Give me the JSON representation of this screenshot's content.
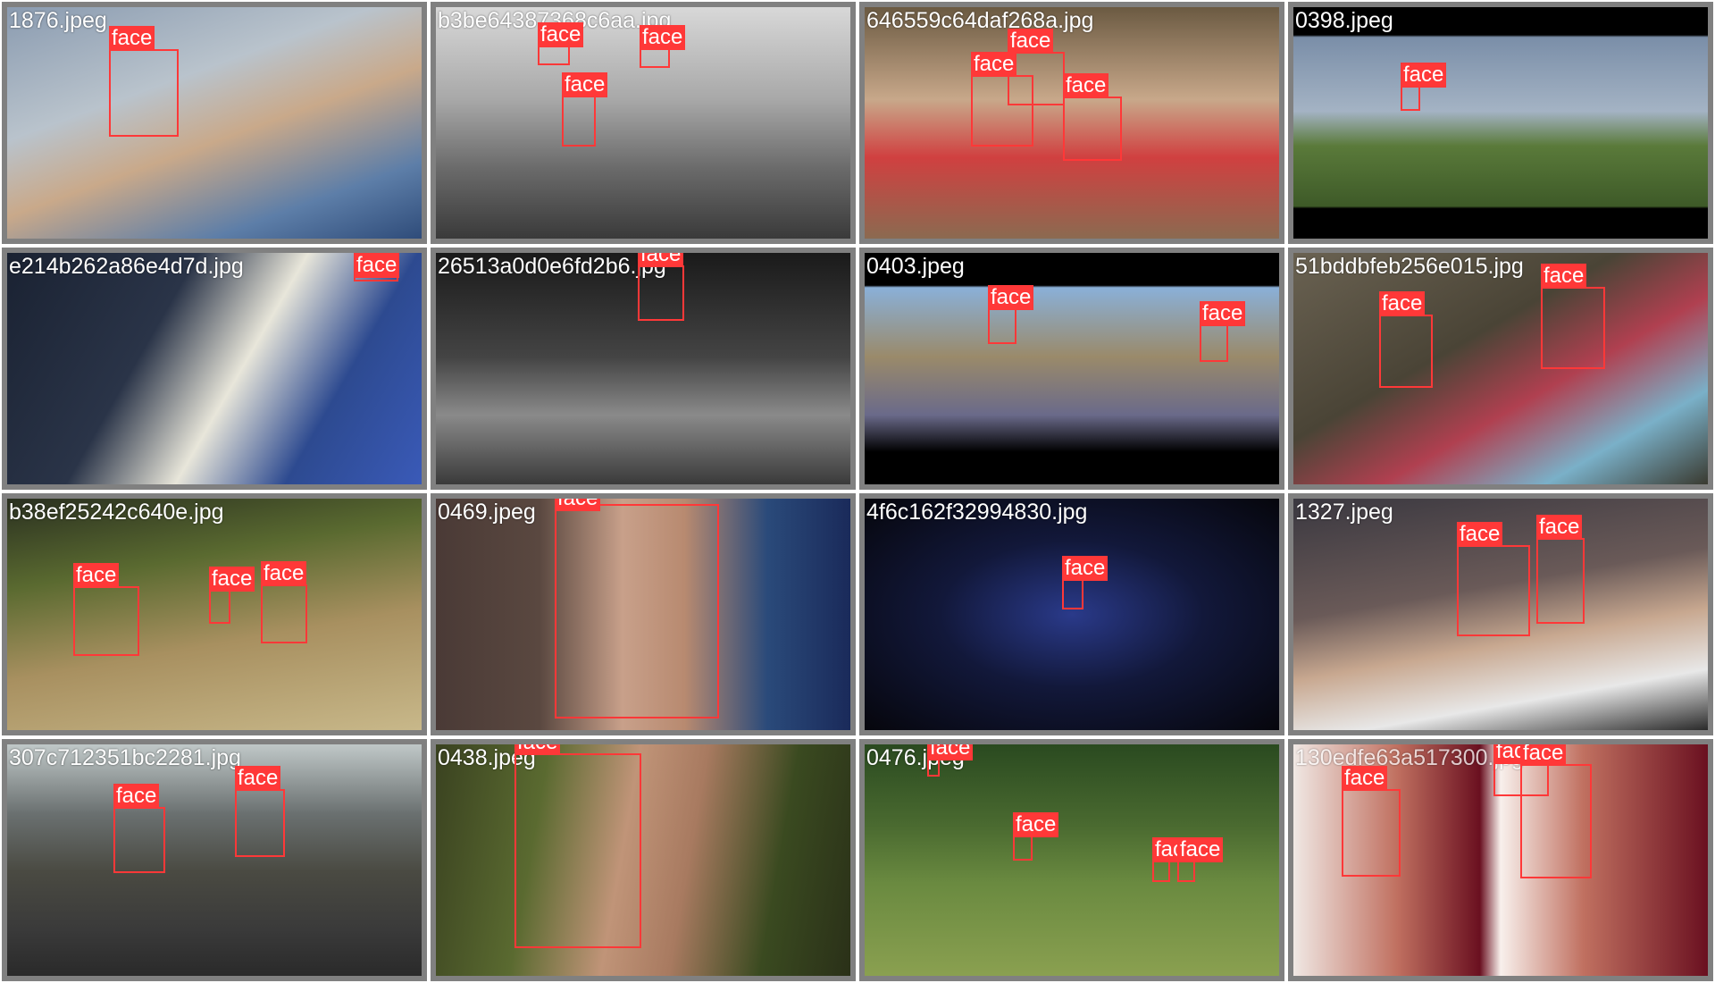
{
  "colors": {
    "box": "#ff3838",
    "border": "#808080",
    "label_text": "#ffffff"
  },
  "tiles": [
    {
      "filename": "1876.jpeg",
      "faces": [
        "face"
      ]
    },
    {
      "filename": "b3be64387368c6aa.jpg",
      "faces": [
        "face",
        "face",
        "face"
      ]
    },
    {
      "filename": "646559c64daf268a.jpg",
      "faces": [
        "face",
        "face",
        "face"
      ]
    },
    {
      "filename": "0398.jpeg",
      "faces": [
        "face"
      ]
    },
    {
      "filename": "e214b262a86e4d7d.jpg",
      "faces": [
        "face"
      ]
    },
    {
      "filename": "26513a0d0e6fd2b6.jpg",
      "faces": [
        "face"
      ]
    },
    {
      "filename": "0403.jpeg",
      "faces": [
        "face",
        "face"
      ]
    },
    {
      "filename": "51bddbfeb256e015.jpg",
      "faces": [
        "face",
        "face"
      ]
    },
    {
      "filename": "b38ef25242c640e.jpg",
      "faces": [
        "face",
        "face",
        "face"
      ]
    },
    {
      "filename": "0469.jpeg",
      "faces": [
        "face"
      ]
    },
    {
      "filename": "4f6c162f32994830.jpg",
      "faces": [
        "face"
      ]
    },
    {
      "filename": "1327.jpeg",
      "faces": [
        "face",
        "face"
      ]
    },
    {
      "filename": "307c712351bc2281.jpg",
      "faces": [
        "face",
        "face"
      ]
    },
    {
      "filename": "0438.jpeg",
      "faces": [
        "face"
      ]
    },
    {
      "filename": "0476.jpeg",
      "faces": [
        "face",
        "face",
        "face",
        "face"
      ]
    },
    {
      "filename": "130edfe63a517300.jpg",
      "faces": [
        "face",
        "face",
        "face"
      ]
    }
  ]
}
